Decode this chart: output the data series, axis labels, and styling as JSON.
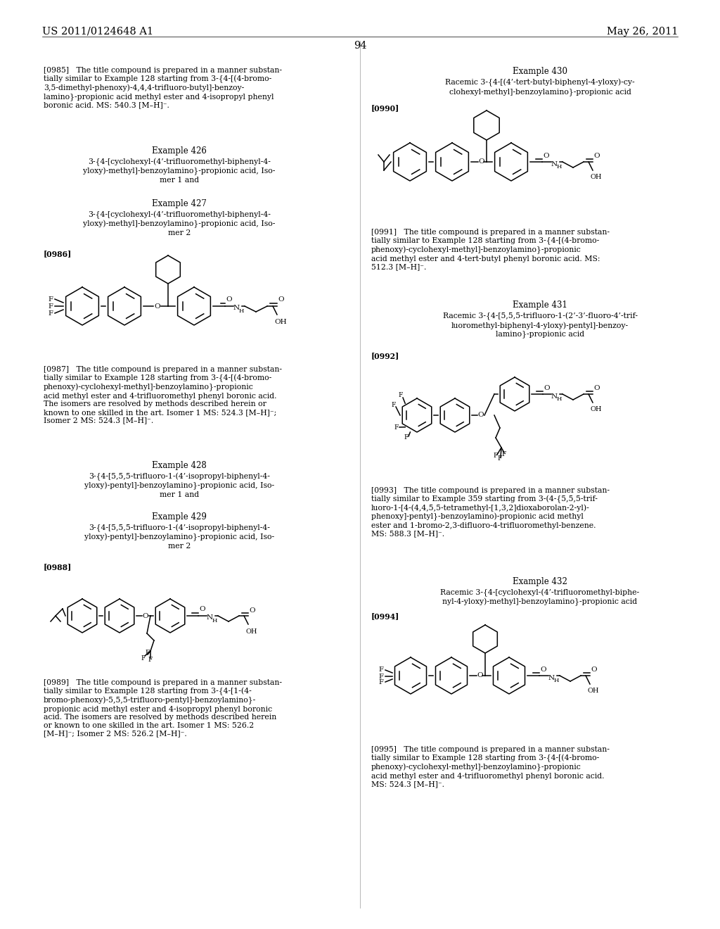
{
  "header_left": "US 2011/0124648 A1",
  "header_right": "May 26, 2011",
  "page_number": "94",
  "background_color": "#ffffff",
  "text_color": "#000000",
  "font_size_header": 10.5,
  "font_size_body": 7.8,
  "font_size_example_title": 8.5,
  "left_column": {
    "para_0985": "[0985]   The title compound is prepared in a manner substan-\ntially similar to Example 128 starting from 3-{4-[(4-bromo-\n3,5-dimethyl-phenoxy)-4,4,4-trifluoro-butyl]-benzoy-\nlamino}-propionic acid methyl ester and 4-isopropyl phenyl\nboronic acid. MS: 540.3 [M–H]⁻.",
    "example426_title": "Example 426",
    "example426_text": "3-{4-[cyclohexyl-(4’-trifluoromethyl-biphenyl-4-\nyloxy)-methyl]-benzoylamino}-propionic acid, Iso-\nmer 1 and",
    "example427_title": "Example 427",
    "example427_text": "3-{4-[cyclohexyl-(4’-trifluoromethyl-biphenyl-4-\nyloxy)-methyl]-benzoylamino}-propionic acid, Iso-\nmer 2",
    "para_0986": "[0986]",
    "para_0987": "[0987]   The title compound is prepared in a manner substan-\ntially similar to Example 128 starting from 3-{4-[(4-bromo-\nphenoxy)-cyclohexyl-methyl]-benzoylamino}-propionic\nacid methyl ester and 4-trifluoromethyl phenyl boronic acid.\nThe isomers are resolved by methods described herein or\nknown to one skilled in the art. Isomer 1 MS: 524.3 [M–H]⁻;\nIsomer 2 MS: 524.3 [M–H]⁻.",
    "example428_title": "Example 428",
    "example428_text": "3-{4-[5,5,5-trifluoro-1-(4’-isopropyl-biphenyl-4-\nyloxy)-pentyl]-benzoylamino}-propionic acid, Iso-\nmer 1 and",
    "example429_title": "Example 429",
    "example429_text": "3-{4-[5,5,5-trifluoro-1-(4’-isopropyl-biphenyl-4-\nyloxy)-pentyl]-benzoylamino}-propionic acid, Iso-\nmer 2",
    "para_0988": "[0988]",
    "para_0989": "[0989]   The title compound is prepared in a manner substan-\ntially similar to Example 128 starting from 3-{4-[1-(4-\nbromo-phenoxy)-5,5,5-trifluoro-pentyl]-benzoylamino}-\npropionic acid methyl ester and 4-isopropyl phenyl boronic\nacid. The isomers are resolved by methods described herein\nor known to one skilled in the art. Isomer 1 MS: 526.2\n[M–H]⁻; Isomer 2 MS: 526.2 [M–H]⁻."
  },
  "right_column": {
    "example430_title": "Example 430",
    "example430_text": "Racemic 3-{4-[(4’-tert-butyl-biphenyl-4-yloxy)-cy-\nclohexyl-methyl]-benzoylamino}-propionic acid",
    "para_0990": "[0990]",
    "para_0991": "[0991]   The title compound is prepared in a manner substan-\ntially similar to Example 128 starting from 3-{4-[(4-bromo-\nphenoxy)-cyclohexyl-methyl]-benzoylamino}-propionic\nacid methyl ester and 4-tert-butyl phenyl boronic acid. MS:\n512.3 [M–H]⁻.",
    "example431_title": "Example 431",
    "example431_text": "Racemic 3-{4-[5,5,5-trifluoro-1-(2’-3’-fluoro-4’-trif-\nluoromethyl-biphenyl-4-yloxy)-pentyl]-benzoy-\nlamino}-propionic acid",
    "para_0992": "[0992]",
    "para_0993": "[0993]   The title compound is prepared in a manner substan-\ntially similar to Example 359 starting from 3-(4-{5,5,5-trif-\nluoro-1-[4-(4,4,5,5-tetramethyl-[1,3,2]dioxaborolan-2-yl)-\nphenoxy]-pentyl}-benzoylamino)-propionic acid methyl\nester and 1-bromo-2,3-difluoro-4-trifluoromethyl-benzene.\nMS: 588.3 [M–H]⁻.",
    "example432_title": "Example 432",
    "example432_text": "Racemic 3-{4-[cyclohexyl-(4’-trifluoromethyl-biphe-\nnyl-4-yloxy)-methyl]-benzoylamino}-propionic acid",
    "para_0994": "[0994]",
    "para_0995": "[0995]   The title compound is prepared in a manner substan-\ntially similar to Example 128 starting from 3-{4-[(4-bromo-\nphenoxy)-cyclohexyl-methyl]-benzoylamino}-propionic\nacid methyl ester and 4-trifluoromethyl phenyl boronic acid.\nMS: 524.3 [M–H]⁻."
  }
}
